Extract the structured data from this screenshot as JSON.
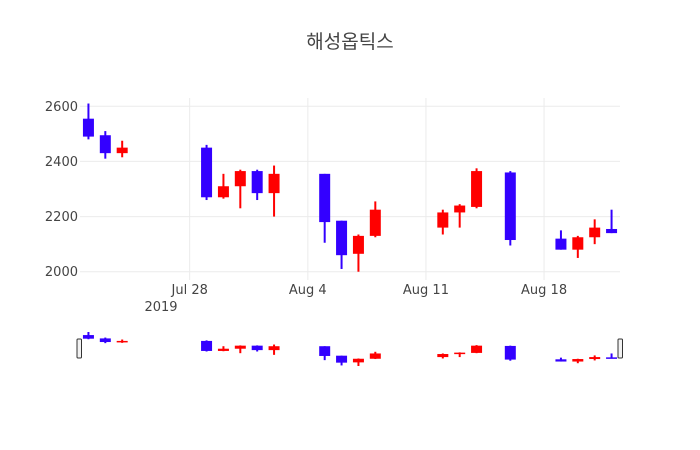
{
  "chart_data": {
    "type": "candlestick",
    "title": "해성옵틱스",
    "xlabel": "",
    "ylabel": "",
    "ylim": [
      1970,
      2630
    ],
    "y_ticks": [
      2000,
      2200,
      2400,
      2600
    ],
    "y_tick_labels": [
      "2000",
      "2200",
      "2400",
      "2600"
    ],
    "x_range": [
      "2019-07-22",
      "2019-08-22"
    ],
    "x_ticks": [
      "2019-07-28",
      "2019-08-04",
      "2019-08-11",
      "2019-08-18"
    ],
    "x_tick_labels": [
      "Jul 28",
      "Aug 4",
      "Aug 11",
      "Aug 18"
    ],
    "x_tick_sublabel": "2019",
    "grid": true,
    "rangeslider": true,
    "colors": {
      "increasing": "#ff0000",
      "decreasing": "#3300ff"
    },
    "candles": [
      {
        "date": "2019-07-22",
        "open": 2555,
        "high": 2610,
        "low": 2480,
        "close": 2490
      },
      {
        "date": "2019-07-23",
        "open": 2495,
        "high": 2510,
        "low": 2410,
        "close": 2430
      },
      {
        "date": "2019-07-24",
        "open": 2430,
        "high": 2475,
        "low": 2415,
        "close": 2450
      },
      {
        "date": "2019-07-29",
        "open": 2450,
        "high": 2460,
        "low": 2260,
        "close": 2270
      },
      {
        "date": "2019-07-30",
        "open": 2270,
        "high": 2355,
        "low": 2265,
        "close": 2310
      },
      {
        "date": "2019-07-31",
        "open": 2310,
        "high": 2370,
        "low": 2230,
        "close": 2365
      },
      {
        "date": "2019-08-01",
        "open": 2365,
        "high": 2370,
        "low": 2260,
        "close": 2285
      },
      {
        "date": "2019-08-02",
        "open": 2285,
        "high": 2385,
        "low": 2200,
        "close": 2355
      },
      {
        "date": "2019-08-05",
        "open": 2355,
        "high": 2355,
        "low": 2105,
        "close": 2180
      },
      {
        "date": "2019-08-06",
        "open": 2185,
        "high": 2185,
        "low": 2010,
        "close": 2060
      },
      {
        "date": "2019-08-07",
        "open": 2065,
        "high": 2135,
        "low": 2000,
        "close": 2130
      },
      {
        "date": "2019-08-08",
        "open": 2130,
        "high": 2255,
        "low": 2125,
        "close": 2225
      },
      {
        "date": "2019-08-12",
        "open": 2160,
        "high": 2225,
        "low": 2135,
        "close": 2215
      },
      {
        "date": "2019-08-13",
        "open": 2215,
        "high": 2245,
        "low": 2160,
        "close": 2240
      },
      {
        "date": "2019-08-14",
        "open": 2235,
        "high": 2375,
        "low": 2230,
        "close": 2365
      },
      {
        "date": "2019-08-16",
        "open": 2360,
        "high": 2365,
        "low": 2095,
        "close": 2115
      },
      {
        "date": "2019-08-19",
        "open": 2120,
        "high": 2150,
        "low": 2080,
        "close": 2080
      },
      {
        "date": "2019-08-20",
        "open": 2080,
        "high": 2130,
        "low": 2050,
        "close": 2125
      },
      {
        "date": "2019-08-21",
        "open": 2125,
        "high": 2190,
        "low": 2100,
        "close": 2160
      },
      {
        "date": "2019-08-22",
        "open": 2155,
        "high": 2225,
        "low": 2140,
        "close": 2140
      }
    ]
  }
}
